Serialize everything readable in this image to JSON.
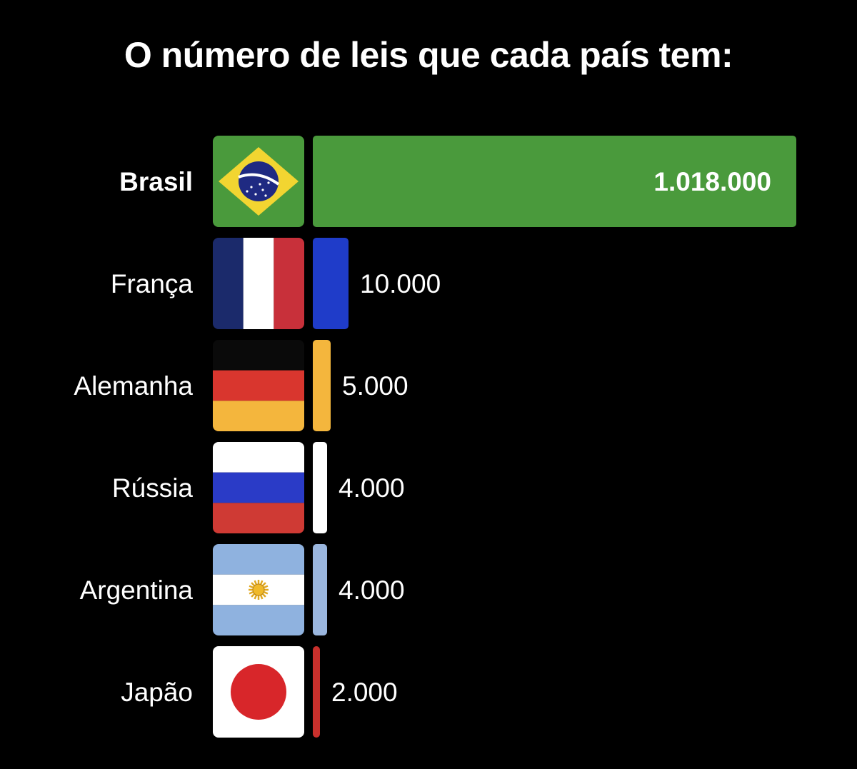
{
  "chart_data": {
    "type": "bar",
    "orientation": "horizontal",
    "title": "O número de leis que cada país tem:",
    "categories": [
      "Brasil",
      "França",
      "Alemanha",
      "Rússia",
      "Argentina",
      "Japão"
    ],
    "values": [
      1018000,
      10000,
      5000,
      4000,
      4000,
      2000
    ],
    "value_labels": [
      "1.018.000",
      "10.000",
      "5.000",
      "4.000",
      "4.000",
      "2.000"
    ],
    "flags": [
      "brazil-flag",
      "france-flag",
      "germany-flag",
      "russia-flag",
      "argentina-flag",
      "japan-flag"
    ],
    "bar_colors": [
      "#4a9a3c",
      "#1f3cc9",
      "#f4b63d",
      "#ffffff",
      "#9ab6de",
      "#c9302c"
    ],
    "value_label_inside_color": "#e2f46a",
    "grid": false,
    "legend": "none"
  }
}
